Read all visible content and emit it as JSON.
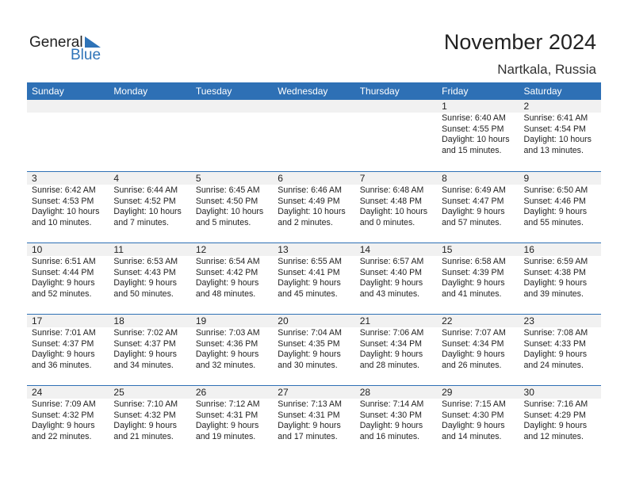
{
  "logo": {
    "general": "General",
    "blue": "Blue"
  },
  "title": "November 2024",
  "location": "Nartkala, Russia",
  "colors": {
    "accent": "#2e70b5",
    "day_bg": "#f1f1f1"
  },
  "days": [
    "Sunday",
    "Monday",
    "Tuesday",
    "Wednesday",
    "Thursday",
    "Friday",
    "Saturday"
  ],
  "weeks": [
    [
      null,
      null,
      null,
      null,
      null,
      {
        "d": "1",
        "sr": "Sunrise: 6:40 AM",
        "ss": "Sunset: 4:55 PM",
        "dl": "Daylight: 10 hours",
        "dm": "and 15 minutes."
      },
      {
        "d": "2",
        "sr": "Sunrise: 6:41 AM",
        "ss": "Sunset: 4:54 PM",
        "dl": "Daylight: 10 hours",
        "dm": "and 13 minutes."
      }
    ],
    [
      {
        "d": "3",
        "sr": "Sunrise: 6:42 AM",
        "ss": "Sunset: 4:53 PM",
        "dl": "Daylight: 10 hours",
        "dm": "and 10 minutes."
      },
      {
        "d": "4",
        "sr": "Sunrise: 6:44 AM",
        "ss": "Sunset: 4:52 PM",
        "dl": "Daylight: 10 hours",
        "dm": "and 7 minutes."
      },
      {
        "d": "5",
        "sr": "Sunrise: 6:45 AM",
        "ss": "Sunset: 4:50 PM",
        "dl": "Daylight: 10 hours",
        "dm": "and 5 minutes."
      },
      {
        "d": "6",
        "sr": "Sunrise: 6:46 AM",
        "ss": "Sunset: 4:49 PM",
        "dl": "Daylight: 10 hours",
        "dm": "and 2 minutes."
      },
      {
        "d": "7",
        "sr": "Sunrise: 6:48 AM",
        "ss": "Sunset: 4:48 PM",
        "dl": "Daylight: 10 hours",
        "dm": "and 0 minutes."
      },
      {
        "d": "8",
        "sr": "Sunrise: 6:49 AM",
        "ss": "Sunset: 4:47 PM",
        "dl": "Daylight: 9 hours",
        "dm": "and 57 minutes."
      },
      {
        "d": "9",
        "sr": "Sunrise: 6:50 AM",
        "ss": "Sunset: 4:46 PM",
        "dl": "Daylight: 9 hours",
        "dm": "and 55 minutes."
      }
    ],
    [
      {
        "d": "10",
        "sr": "Sunrise: 6:51 AM",
        "ss": "Sunset: 4:44 PM",
        "dl": "Daylight: 9 hours",
        "dm": "and 52 minutes."
      },
      {
        "d": "11",
        "sr": "Sunrise: 6:53 AM",
        "ss": "Sunset: 4:43 PM",
        "dl": "Daylight: 9 hours",
        "dm": "and 50 minutes."
      },
      {
        "d": "12",
        "sr": "Sunrise: 6:54 AM",
        "ss": "Sunset: 4:42 PM",
        "dl": "Daylight: 9 hours",
        "dm": "and 48 minutes."
      },
      {
        "d": "13",
        "sr": "Sunrise: 6:55 AM",
        "ss": "Sunset: 4:41 PM",
        "dl": "Daylight: 9 hours",
        "dm": "and 45 minutes."
      },
      {
        "d": "14",
        "sr": "Sunrise: 6:57 AM",
        "ss": "Sunset: 4:40 PM",
        "dl": "Daylight: 9 hours",
        "dm": "and 43 minutes."
      },
      {
        "d": "15",
        "sr": "Sunrise: 6:58 AM",
        "ss": "Sunset: 4:39 PM",
        "dl": "Daylight: 9 hours",
        "dm": "and 41 minutes."
      },
      {
        "d": "16",
        "sr": "Sunrise: 6:59 AM",
        "ss": "Sunset: 4:38 PM",
        "dl": "Daylight: 9 hours",
        "dm": "and 39 minutes."
      }
    ],
    [
      {
        "d": "17",
        "sr": "Sunrise: 7:01 AM",
        "ss": "Sunset: 4:37 PM",
        "dl": "Daylight: 9 hours",
        "dm": "and 36 minutes."
      },
      {
        "d": "18",
        "sr": "Sunrise: 7:02 AM",
        "ss": "Sunset: 4:37 PM",
        "dl": "Daylight: 9 hours",
        "dm": "and 34 minutes."
      },
      {
        "d": "19",
        "sr": "Sunrise: 7:03 AM",
        "ss": "Sunset: 4:36 PM",
        "dl": "Daylight: 9 hours",
        "dm": "and 32 minutes."
      },
      {
        "d": "20",
        "sr": "Sunrise: 7:04 AM",
        "ss": "Sunset: 4:35 PM",
        "dl": "Daylight: 9 hours",
        "dm": "and 30 minutes."
      },
      {
        "d": "21",
        "sr": "Sunrise: 7:06 AM",
        "ss": "Sunset: 4:34 PM",
        "dl": "Daylight: 9 hours",
        "dm": "and 28 minutes."
      },
      {
        "d": "22",
        "sr": "Sunrise: 7:07 AM",
        "ss": "Sunset: 4:34 PM",
        "dl": "Daylight: 9 hours",
        "dm": "and 26 minutes."
      },
      {
        "d": "23",
        "sr": "Sunrise: 7:08 AM",
        "ss": "Sunset: 4:33 PM",
        "dl": "Daylight: 9 hours",
        "dm": "and 24 minutes."
      }
    ],
    [
      {
        "d": "24",
        "sr": "Sunrise: 7:09 AM",
        "ss": "Sunset: 4:32 PM",
        "dl": "Daylight: 9 hours",
        "dm": "and 22 minutes."
      },
      {
        "d": "25",
        "sr": "Sunrise: 7:10 AM",
        "ss": "Sunset: 4:32 PM",
        "dl": "Daylight: 9 hours",
        "dm": "and 21 minutes."
      },
      {
        "d": "26",
        "sr": "Sunrise: 7:12 AM",
        "ss": "Sunset: 4:31 PM",
        "dl": "Daylight: 9 hours",
        "dm": "and 19 minutes."
      },
      {
        "d": "27",
        "sr": "Sunrise: 7:13 AM",
        "ss": "Sunset: 4:31 PM",
        "dl": "Daylight: 9 hours",
        "dm": "and 17 minutes."
      },
      {
        "d": "28",
        "sr": "Sunrise: 7:14 AM",
        "ss": "Sunset: 4:30 PM",
        "dl": "Daylight: 9 hours",
        "dm": "and 16 minutes."
      },
      {
        "d": "29",
        "sr": "Sunrise: 7:15 AM",
        "ss": "Sunset: 4:30 PM",
        "dl": "Daylight: 9 hours",
        "dm": "and 14 minutes."
      },
      {
        "d": "30",
        "sr": "Sunrise: 7:16 AM",
        "ss": "Sunset: 4:29 PM",
        "dl": "Daylight: 9 hours",
        "dm": "and 12 minutes."
      }
    ]
  ]
}
